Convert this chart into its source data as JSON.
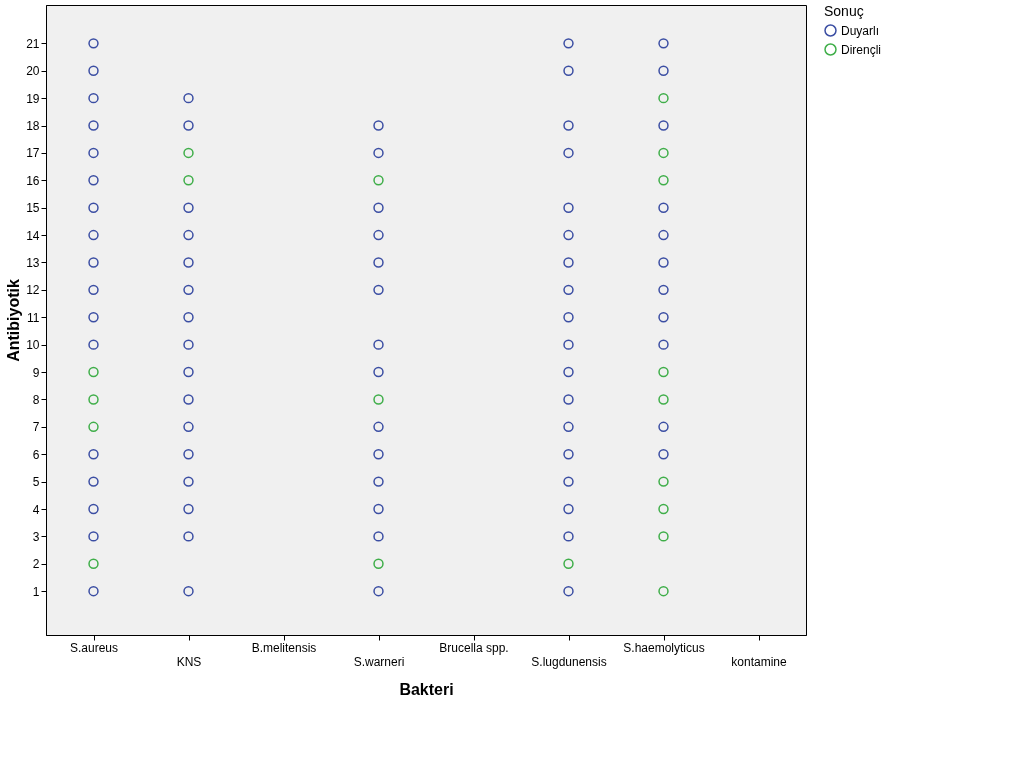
{
  "chart_data": {
    "type": "scatter",
    "xlabel": "Bakteri",
    "ylabel": "Antibiyotik",
    "legend_title": "Sonuç",
    "legend": "top right",
    "marker": "circle",
    "grid": false,
    "categories": [
      "S.aureus",
      "KNS",
      "B.melitensis",
      "S.warneri",
      "Brucella spp.",
      "S.lugdunensis",
      "S.haemolyticus",
      "kontamine"
    ],
    "ylim": [
      -0.6,
      22.4
    ],
    "yticks": [
      1,
      2,
      3,
      4,
      5,
      6,
      7,
      8,
      9,
      10,
      11,
      12,
      13,
      14,
      15,
      16,
      17,
      18,
      19,
      20,
      21
    ],
    "series": [
      {
        "name": "Duyarlı",
        "color": "#3b4ea3",
        "x": [
          "S.aureus",
          "S.aureus",
          "S.aureus",
          "S.aureus",
          "S.aureus",
          "S.aureus",
          "S.aureus",
          "S.aureus",
          "S.aureus",
          "S.aureus",
          "S.aureus",
          "S.aureus",
          "S.aureus",
          "S.aureus",
          "S.aureus",
          "S.aureus",
          "S.aureus",
          "KNS",
          "KNS",
          "KNS",
          "KNS",
          "KNS",
          "KNS",
          "KNS",
          "KNS",
          "KNS",
          "KNS",
          "KNS",
          "KNS",
          "KNS",
          "KNS",
          "KNS",
          "KNS",
          "S.warneri",
          "S.warneri",
          "S.warneri",
          "S.warneri",
          "S.warneri",
          "S.warneri",
          "S.warneri",
          "S.warneri",
          "S.warneri",
          "S.warneri",
          "S.warneri",
          "S.warneri",
          "S.warneri",
          "S.warneri",
          "S.lugdunensis",
          "S.lugdunensis",
          "S.lugdunensis",
          "S.lugdunensis",
          "S.lugdunensis",
          "S.lugdunensis",
          "S.lugdunensis",
          "S.lugdunensis",
          "S.lugdunensis",
          "S.lugdunensis",
          "S.lugdunensis",
          "S.lugdunensis",
          "S.lugdunensis",
          "S.lugdunensis",
          "S.lugdunensis",
          "S.lugdunensis",
          "S.lugdunensis",
          "S.lugdunensis",
          "S.haemolyticus",
          "S.haemolyticus",
          "S.haemolyticus",
          "S.haemolyticus",
          "S.haemolyticus",
          "S.haemolyticus",
          "S.haemolyticus",
          "S.haemolyticus",
          "S.haemolyticus",
          "S.haemolyticus",
          "S.haemolyticus"
        ],
        "values": [
          1,
          3,
          4,
          5,
          6,
          10,
          11,
          12,
          13,
          14,
          15,
          16,
          17,
          18,
          19,
          20,
          21,
          1,
          3,
          4,
          5,
          6,
          7,
          8,
          9,
          10,
          11,
          12,
          13,
          14,
          15,
          18,
          19,
          1,
          3,
          4,
          5,
          6,
          7,
          9,
          10,
          12,
          13,
          14,
          15,
          17,
          18,
          1,
          3,
          4,
          5,
          6,
          7,
          8,
          9,
          10,
          11,
          12,
          13,
          14,
          15,
          17,
          18,
          20,
          21,
          6,
          7,
          10,
          11,
          12,
          13,
          14,
          15,
          18,
          20,
          21
        ]
      },
      {
        "name": "Dirençli",
        "color": "#3fae49",
        "x": [
          "S.aureus",
          "S.aureus",
          "S.aureus",
          "S.aureus",
          "KNS",
          "KNS",
          "S.warneri",
          "S.warneri",
          "S.warneri",
          "S.lugdunensis",
          "S.haemolyticus",
          "S.haemolyticus",
          "S.haemolyticus",
          "S.haemolyticus",
          "S.haemolyticus",
          "S.haemolyticus",
          "S.haemolyticus",
          "S.haemolyticus",
          "S.haemolyticus"
        ],
        "values": [
          2,
          7,
          8,
          9,
          16,
          17,
          2,
          8,
          16,
          2,
          1,
          3,
          4,
          5,
          8,
          9,
          16,
          17,
          19
        ]
      }
    ]
  }
}
